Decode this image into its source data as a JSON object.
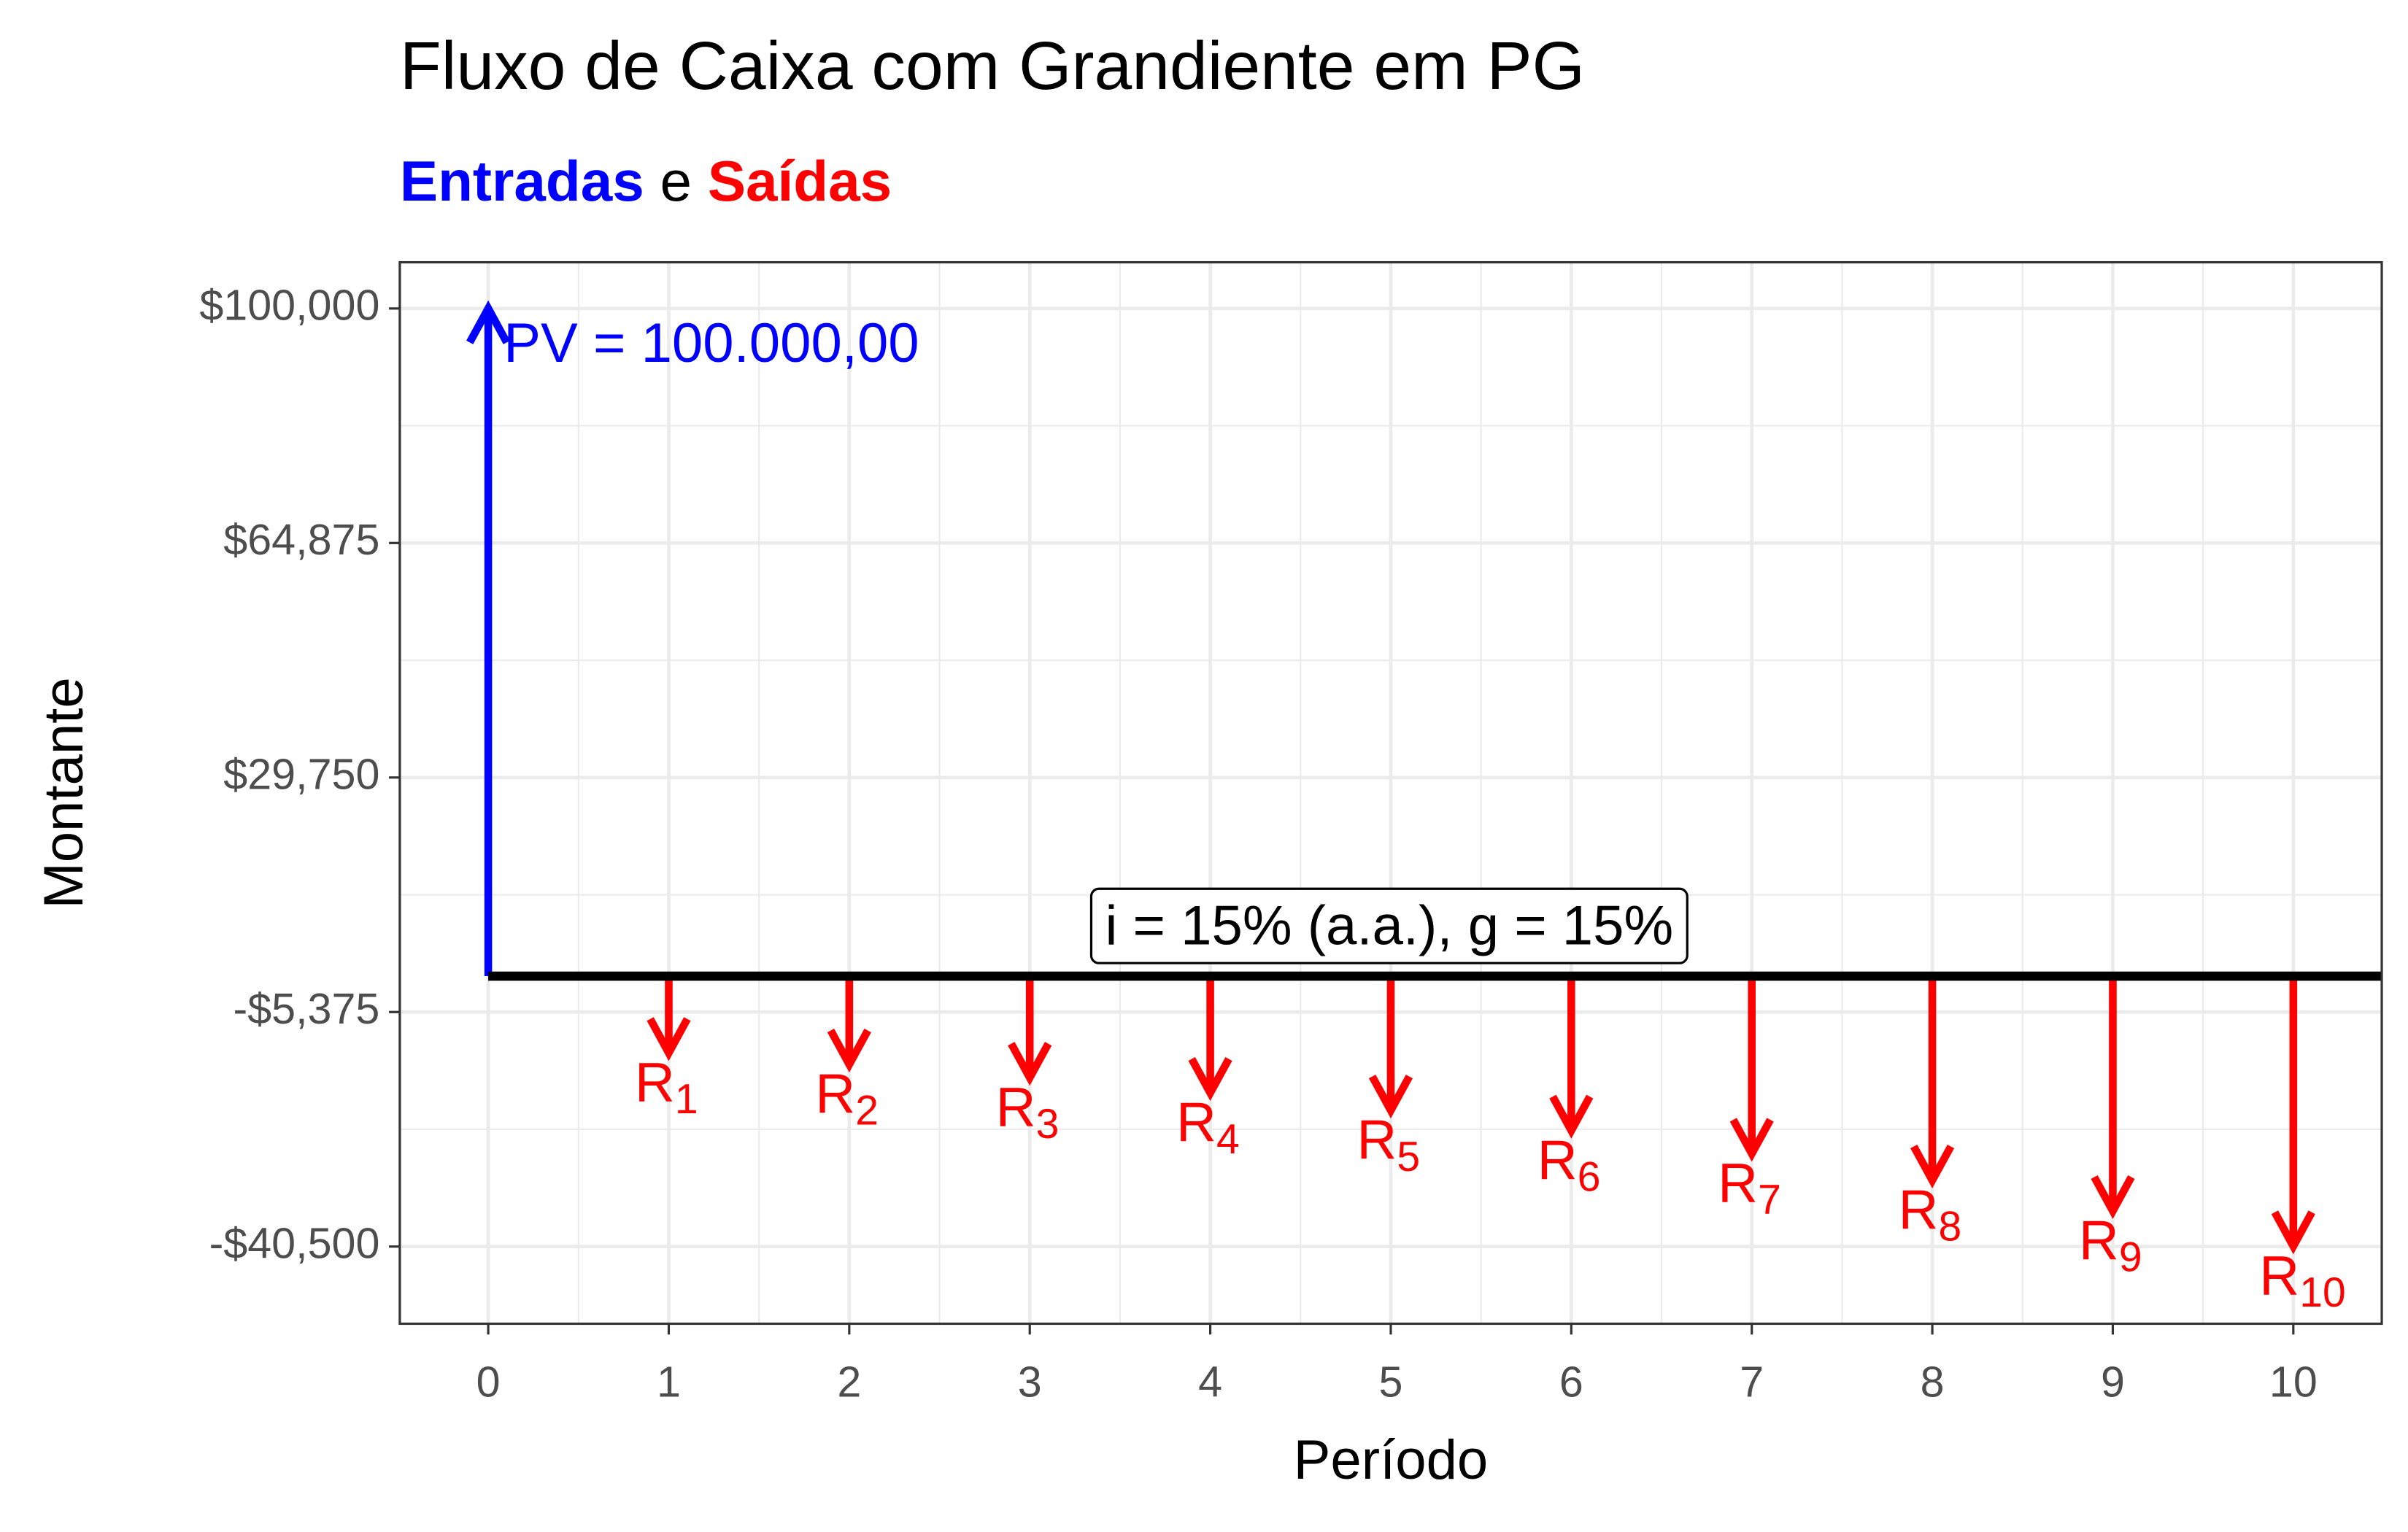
{
  "chart_data": {
    "type": "cashflow",
    "title": "Fluxo de Caixa com Grandiente em PG",
    "subtitle_connector": "e",
    "x_label": "Período",
    "y_label": "Montante",
    "series": [
      {
        "name": "Entradas",
        "color": "#0000ff",
        "x": [
          0
        ],
        "values": [
          100000
        ]
      },
      {
        "name": "Saídas",
        "color": "#ff0000",
        "x": [
          1,
          2,
          3,
          4,
          5,
          6,
          7,
          8,
          9,
          10
        ],
        "values": [
          -11500,
          -13225,
          -15208.75,
          -17490.06,
          -20113.57,
          -23130.61,
          -26600.2,
          -30590.23,
          -35178.76,
          -40455.58
        ],
        "point_labels": [
          {
            "text": "R",
            "sub": "1"
          },
          {
            "text": "R",
            "sub": "2"
          },
          {
            "text": "R",
            "sub": "3"
          },
          {
            "text": "R",
            "sub": "4"
          },
          {
            "text": "R",
            "sub": "5"
          },
          {
            "text": "R",
            "sub": "6"
          },
          {
            "text": "R",
            "sub": "7"
          },
          {
            "text": "R",
            "sub": "8"
          },
          {
            "text": "R",
            "sub": "9"
          },
          {
            "text": "R",
            "sub": "10"
          }
        ]
      }
    ],
    "pv_label": "PV = 100.000,00",
    "rate_label": "i = 15% (a.a.), g = 15%",
    "hline": 0,
    "xlim": [
      -0.49,
      10.49
    ],
    "ylim": [
      -52060,
      106920
    ],
    "xticks": [
      0,
      1,
      2,
      3,
      4,
      5,
      6,
      7,
      8,
      9,
      10
    ],
    "yticks": [
      {
        "value": -40500,
        "label": "-$40,500"
      },
      {
        "value": -5375,
        "label": "-$5,375"
      },
      {
        "value": 29750,
        "label": "$29,750"
      },
      {
        "value": 64875,
        "label": "$64,875"
      },
      {
        "value": 100000,
        "label": "$100,000"
      }
    ],
    "grid": true
  }
}
